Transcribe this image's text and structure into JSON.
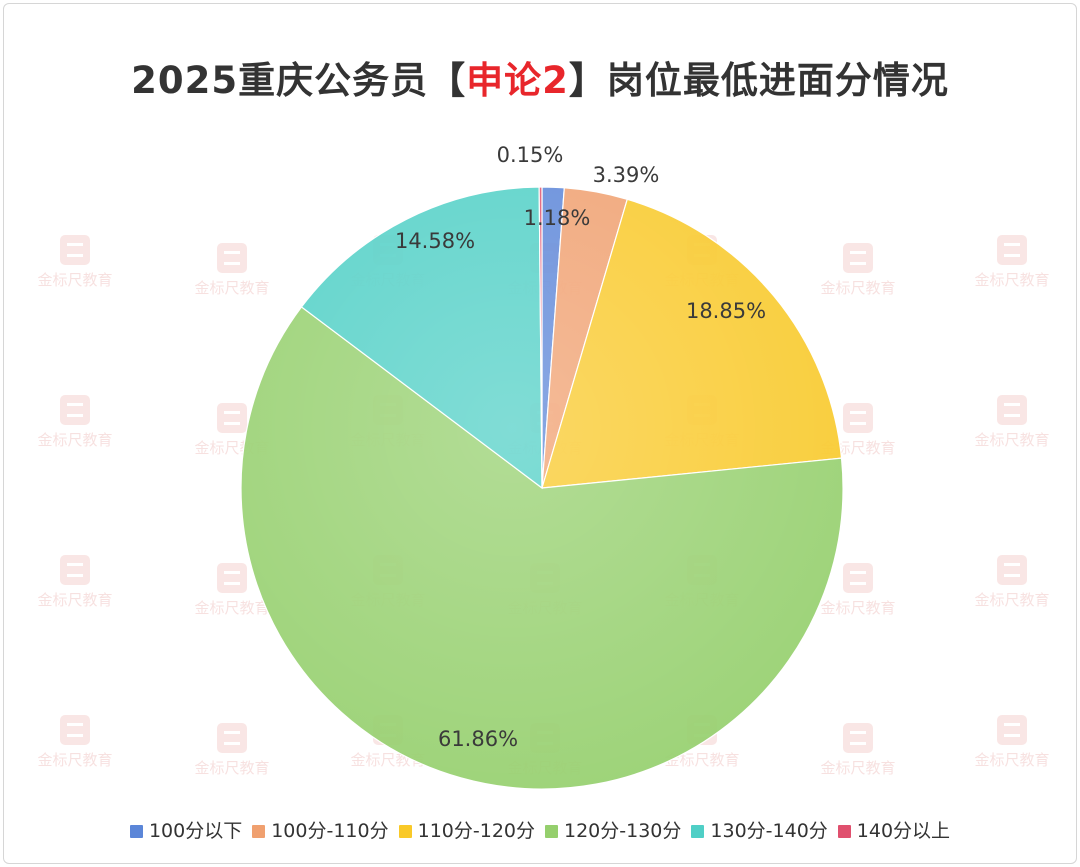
{
  "title": {
    "prefix": "2025重庆公务员【",
    "highlight": "申论2",
    "suffix": "】岗位最低进面分情况"
  },
  "watermark": {
    "text": "金标尺教育"
  },
  "colors": {
    "title_highlight": "#e8262b"
  },
  "chart_data": {
    "type": "pie",
    "start_angle_deg": 0,
    "direction": "clockwise",
    "slices": [
      {
        "name": "100分以下",
        "value": 1.18,
        "label": "1.18%",
        "color": "#5b86d8"
      },
      {
        "name": "100分-110分",
        "value": 3.39,
        "label": "3.39%",
        "color": "#f0a06f"
      },
      {
        "name": "110分-120分",
        "value": 18.85,
        "label": "18.85%",
        "color": "#f9c928"
      },
      {
        "name": "120分-130分",
        "value": 61.86,
        "label": "61.86%",
        "color": "#95cf6d"
      },
      {
        "name": "130分-140分",
        "value": 14.58,
        "label": "14.58%",
        "color": "#4fcfc6"
      },
      {
        "name": "140分以上",
        "value": 0.15,
        "label": "0.15%",
        "color": "#e0506e"
      }
    ],
    "legend_position": "bottom"
  }
}
